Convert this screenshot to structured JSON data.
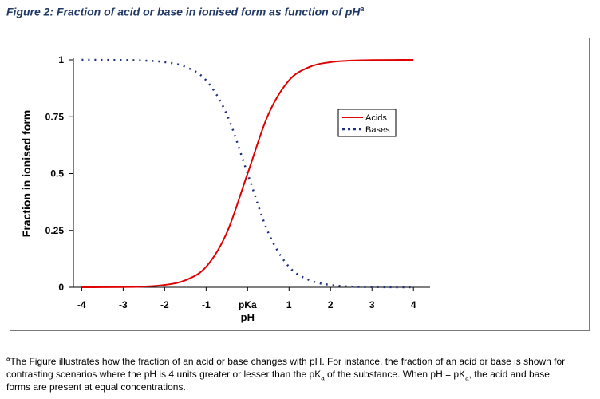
{
  "figure": {
    "title": "Figure 2: Fraction of acid or base in ionised form as function of pH",
    "title_sup": "a"
  },
  "chart_data": {
    "type": "line",
    "title": "",
    "xlabel": "pH",
    "ylabel": "Fraction in ionised form",
    "xlim": [
      -4.2,
      4.4
    ],
    "ylim": [
      0,
      1
    ],
    "x_ticks": [
      -4,
      -3,
      -2,
      -1,
      0,
      1,
      2,
      3,
      4
    ],
    "x_tick_labels": [
      "-4",
      "-3",
      "-2",
      "-1",
      "pKa",
      "1",
      "2",
      "3",
      "4"
    ],
    "y_ticks": [
      0,
      0.25,
      0.5,
      0.75,
      1
    ],
    "y_tick_labels": [
      "0",
      "0.25",
      "0.5",
      "0.75",
      "1"
    ],
    "x": [
      -4,
      -3.5,
      -3,
      -2.5,
      -2,
      -1.5,
      -1,
      -0.5,
      0,
      0.5,
      1,
      1.5,
      2,
      2.5,
      3,
      3.5,
      4
    ],
    "series": [
      {
        "name": "Acids",
        "color": "#e00000",
        "style": "solid",
        "values": [
          0.0001,
          0.0003,
          0.001,
          0.003,
          0.01,
          0.031,
          0.09,
          0.24,
          0.5,
          0.76,
          0.91,
          0.969,
          0.99,
          0.997,
          0.999,
          0.9997,
          0.9999
        ]
      },
      {
        "name": "Bases",
        "color": "#1f2f80",
        "style": "dotted",
        "values": [
          0.9999,
          0.9997,
          0.999,
          0.997,
          0.99,
          0.969,
          0.91,
          0.76,
          0.5,
          0.24,
          0.09,
          0.031,
          0.01,
          0.003,
          0.001,
          0.0003,
          0.0001
        ]
      }
    ],
    "grid": false,
    "legend_position": "top-right"
  },
  "footnote": {
    "sup": "a",
    "line1": "The Figure illustrates how the fraction of an acid or base changes with pH. For instance, the fraction of an acid or base is shown for",
    "line2_a": "contrasting scenarios where the pH is 4 units greater or lesser than the pK",
    "sub1": "a",
    "line2_b": " of the substance.  When pH = pK",
    "sub2": "a",
    "line2_c": ", the acid and base",
    "line3": "forms are present at equal concentrations."
  }
}
